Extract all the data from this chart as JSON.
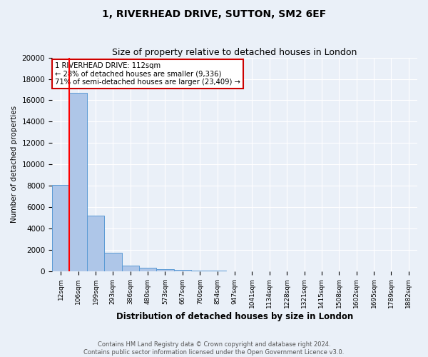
{
  "title1": "1, RIVERHEAD DRIVE, SUTTON, SM2 6EF",
  "title2": "Size of property relative to detached houses in London",
  "xlabel": "Distribution of detached houses by size in London",
  "ylabel": "Number of detached properties",
  "bar_labels": [
    "12sqm",
    "106sqm",
    "199sqm",
    "293sqm",
    "386sqm",
    "480sqm",
    "573sqm",
    "667sqm",
    "760sqm",
    "854sqm",
    "947sqm",
    "1041sqm",
    "1134sqm",
    "1228sqm",
    "1321sqm",
    "1415sqm",
    "1508sqm",
    "1602sqm",
    "1695sqm",
    "1789sqm",
    "1882sqm"
  ],
  "bar_values": [
    8050,
    16700,
    5200,
    1700,
    490,
    310,
    180,
    80,
    30,
    10,
    5,
    2,
    2,
    1,
    1,
    0,
    0,
    0,
    0,
    0,
    0
  ],
  "bar_color": "#aec6e8",
  "bar_edge_color": "#5b9bd5",
  "red_line_x": 0.5,
  "annotation_text": "1 RIVERHEAD DRIVE: 112sqm\n← 28% of detached houses are smaller (9,336)\n71% of semi-detached houses are larger (23,409) →",
  "annotation_box_color": "#ffffff",
  "annotation_edge_color": "#cc0000",
  "ylim": [
    0,
    20000
  ],
  "yticks": [
    0,
    2000,
    4000,
    6000,
    8000,
    10000,
    12000,
    14000,
    16000,
    18000,
    20000
  ],
  "footer1": "Contains HM Land Registry data © Crown copyright and database right 2024.",
  "footer2": "Contains public sector information licensed under the Open Government Licence v3.0.",
  "background_color": "#eaf0f8",
  "grid_color": "#ffffff",
  "title1_fontsize": 10,
  "title2_fontsize": 9
}
